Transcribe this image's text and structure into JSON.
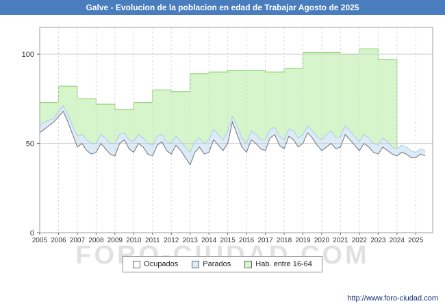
{
  "header": {
    "bar_color": "#4a7dbd"
  },
  "footer": {
    "url": "http://www.foro-ciudad.com"
  },
  "watermark": "FORO-CIUDAD.COM",
  "chart_data": {
    "type": "area",
    "title": "Galve - Evolucion de la poblacion en edad de Trabajar Agosto de 2025",
    "xlabel": "",
    "ylabel": "",
    "xlim": [
      2005,
      2025.9
    ],
    "ylim": [
      0,
      115
    ],
    "x_start": 2005,
    "x_step": 0.25,
    "x_ticks": [
      "2005",
      "2006",
      "2007",
      "2008",
      "2009",
      "2010",
      "2011",
      "2012",
      "2013",
      "2014",
      "2015",
      "2016",
      "2017",
      "2018",
      "2019",
      "2020",
      "2021",
      "2022",
      "2023",
      "2024",
      "2025"
    ],
    "y_ticks": [
      0,
      50,
      100
    ],
    "grid": true,
    "legend_position": "bottom",
    "legend": [
      "Ocupados",
      "Parados",
      "Hab. entre 16-64"
    ],
    "series": [
      {
        "key": "hab",
        "name": "Hab. entre 16-64",
        "mode": "step-yearly",
        "years": [
          2005,
          2006,
          2007,
          2008,
          2009,
          2010,
          2011,
          2012,
          2013,
          2014,
          2015,
          2016,
          2017,
          2018,
          2019,
          2020,
          2021,
          2022,
          2023
        ],
        "values": [
          73,
          82,
          75,
          72,
          69,
          73,
          80,
          79,
          89,
          90,
          91,
          91,
          90,
          92,
          101,
          101,
          100,
          103,
          97
        ],
        "fill": "#d6f5cb",
        "stroke": "#8ed470"
      },
      {
        "key": "parados",
        "name": "Parados",
        "mode": "area-quarterly",
        "values": [
          60,
          62,
          63,
          64,
          68,
          71,
          66,
          60,
          54,
          55,
          52,
          50,
          50,
          55,
          53,
          50,
          50,
          55,
          56,
          52,
          51,
          55,
          53,
          50,
          49,
          54,
          55,
          51,
          50,
          54,
          51,
          48,
          45,
          51,
          53,
          50,
          52,
          58,
          55,
          52,
          57,
          65,
          60,
          53,
          50,
          57,
          55,
          52,
          52,
          58,
          59,
          54,
          52,
          58,
          57,
          53,
          55,
          60,
          57,
          54,
          52,
          55,
          57,
          53,
          54,
          60,
          57,
          54,
          51,
          55,
          53,
          50,
          49,
          53,
          51,
          48,
          47,
          49,
          48,
          46,
          45,
          47,
          46
        ],
        "fill": "#dcebf8",
        "stroke": "#a9cbe8"
      },
      {
        "key": "ocupados",
        "name": "Ocupados",
        "mode": "area-quarterly",
        "values": [
          56,
          58,
          60,
          62,
          65,
          68,
          62,
          55,
          48,
          50,
          46,
          44,
          45,
          50,
          47,
          44,
          43,
          50,
          52,
          47,
          45,
          50,
          48,
          44,
          43,
          49,
          51,
          46,
          44,
          49,
          46,
          42,
          38,
          45,
          48,
          44,
          45,
          52,
          49,
          46,
          50,
          62,
          55,
          48,
          45,
          52,
          50,
          47,
          46,
          53,
          55,
          49,
          47,
          54,
          52,
          48,
          50,
          56,
          53,
          49,
          46,
          48,
          50,
          47,
          48,
          55,
          52,
          49,
          46,
          50,
          48,
          45,
          44,
          48,
          46,
          44,
          43,
          45,
          44,
          42,
          42,
          44,
          43
        ],
        "fill": "#ffffff",
        "stroke": "#707070"
      }
    ]
  }
}
